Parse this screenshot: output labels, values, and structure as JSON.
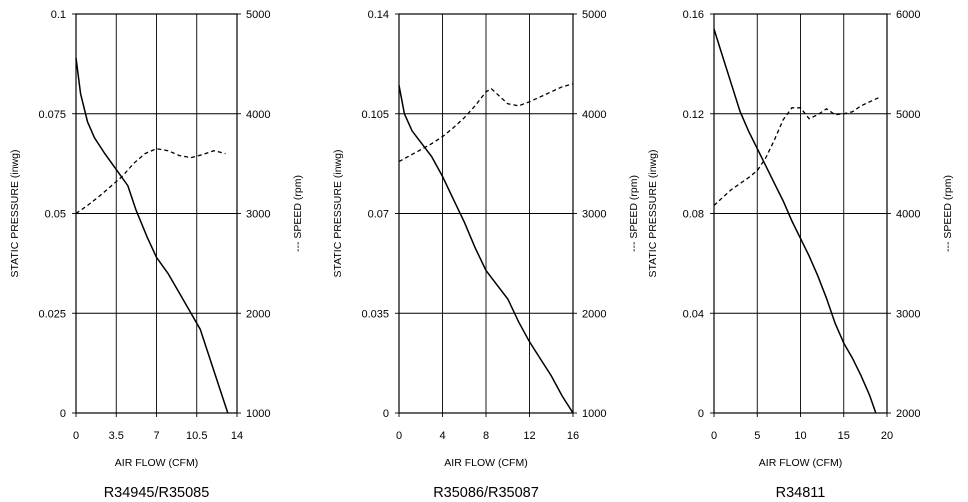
{
  "chart_data": [
    {
      "type": "line",
      "title": "R34945/R35085",
      "xlabel": "AIR FLOW (CFM)",
      "ylabel": "STATIC PRESSURE (inwg)",
      "y2label": "--- SPEED (rpm)",
      "xlim": [
        0,
        14
      ],
      "ylim": [
        0,
        0.1
      ],
      "y2lim": [
        1000,
        5000
      ],
      "xticks": [
        "0",
        "3.5",
        "7",
        "10.5",
        "14"
      ],
      "yticks": [
        "0",
        "0.025",
        "0.05",
        "0.075",
        "0.1"
      ],
      "y2ticks": [
        "1000",
        "2000",
        "3000",
        "4000",
        "5000"
      ],
      "grid": true,
      "series": [
        {
          "style": "solid",
          "axis": "left",
          "x": [
            0,
            0.4,
            1,
            1.6,
            2.5,
            3.5,
            4.5,
            5.2,
            6.2,
            7,
            8,
            9,
            10,
            10.8,
            11.6,
            12.4,
            13.2
          ],
          "y": [
            0.089,
            0.08,
            0.073,
            0.069,
            0.065,
            0.061,
            0.057,
            0.051,
            0.044,
            0.039,
            0.035,
            0.03,
            0.025,
            0.021,
            0.014,
            0.007,
            0
          ]
        },
        {
          "style": "dashed",
          "axis": "right",
          "x": [
            0,
            1,
            2,
            3,
            4,
            5,
            6,
            7,
            8,
            9,
            10,
            11,
            12,
            13
          ],
          "y": [
            3000,
            3080,
            3170,
            3270,
            3370,
            3500,
            3600,
            3650,
            3630,
            3580,
            3560,
            3590,
            3630,
            3600
          ]
        }
      ]
    },
    {
      "type": "line",
      "title": "R35086/R35087",
      "xlabel": "AIR FLOW (CFM)",
      "ylabel": "STATIC PRESSURE (inwg)",
      "y2label": "--- SPEED (rpm)",
      "xlim": [
        0,
        16
      ],
      "ylim": [
        0,
        0.14
      ],
      "y2lim": [
        1000,
        5000
      ],
      "xticks": [
        "0",
        "4",
        "8",
        "12",
        "16"
      ],
      "yticks": [
        "0",
        "0.035",
        "0.07",
        "0.105",
        "0.14"
      ],
      "y2ticks": [
        "1000",
        "2000",
        "3000",
        "4000",
        "5000"
      ],
      "grid": true,
      "series": [
        {
          "style": "solid",
          "axis": "left",
          "x": [
            0,
            0.5,
            1.2,
            2,
            3,
            4,
            5,
            6,
            7,
            8,
            9,
            10,
            11,
            12,
            13,
            14,
            15,
            16
          ],
          "y": [
            0.115,
            0.105,
            0.099,
            0.095,
            0.09,
            0.083,
            0.075,
            0.067,
            0.058,
            0.05,
            0.045,
            0.04,
            0.032,
            0.025,
            0.019,
            0.013,
            0.006,
            0
          ]
        },
        {
          "style": "dashed",
          "axis": "right",
          "x": [
            0,
            1,
            2,
            3,
            4,
            5,
            6,
            7,
            8,
            8.5,
            9,
            10,
            11,
            12,
            13,
            14,
            15,
            16
          ],
          "y": [
            3520,
            3580,
            3640,
            3700,
            3770,
            3860,
            3960,
            4080,
            4220,
            4250,
            4200,
            4100,
            4080,
            4120,
            4170,
            4220,
            4270,
            4300
          ]
        }
      ]
    },
    {
      "type": "line",
      "title": "R34811",
      "xlabel": "AIR FLOW (CFM)",
      "ylabel": "STATIC PRESSURE (inwg)",
      "y2label": "--- SPEED (rpm)",
      "xlim": [
        0,
        20
      ],
      "ylim": [
        0,
        0.16
      ],
      "y2lim": [
        2000,
        6000
      ],
      "xticks": [
        "0",
        "5",
        "10",
        "15",
        "20"
      ],
      "yticks": [
        "0",
        "0.04",
        "0.08",
        "0.12",
        "0.16"
      ],
      "y2ticks": [
        "2000",
        "3000",
        "4000",
        "5000",
        "6000"
      ],
      "grid": true,
      "series": [
        {
          "style": "solid",
          "axis": "left",
          "x": [
            0,
            1,
            2,
            3,
            4,
            5,
            6,
            7,
            8,
            9,
            10,
            11,
            12,
            13,
            14,
            15,
            16,
            17,
            18,
            18.7
          ],
          "y": [
            0.154,
            0.143,
            0.132,
            0.121,
            0.113,
            0.106,
            0.099,
            0.092,
            0.085,
            0.077,
            0.07,
            0.063,
            0.055,
            0.046,
            0.036,
            0.028,
            0.022,
            0.015,
            0.007,
            0
          ]
        },
        {
          "style": "dashed",
          "axis": "right",
          "x": [
            0,
            1,
            2,
            3,
            4,
            5,
            6,
            7,
            8,
            9,
            10,
            11,
            12,
            13,
            14,
            15,
            16,
            17,
            18,
            19
          ],
          "y": [
            4080,
            4160,
            4240,
            4300,
            4360,
            4430,
            4560,
            4740,
            4940,
            5060,
            5060,
            4950,
            4990,
            5050,
            4990,
            5000,
            5020,
            5080,
            5120,
            5160
          ]
        }
      ]
    }
  ]
}
